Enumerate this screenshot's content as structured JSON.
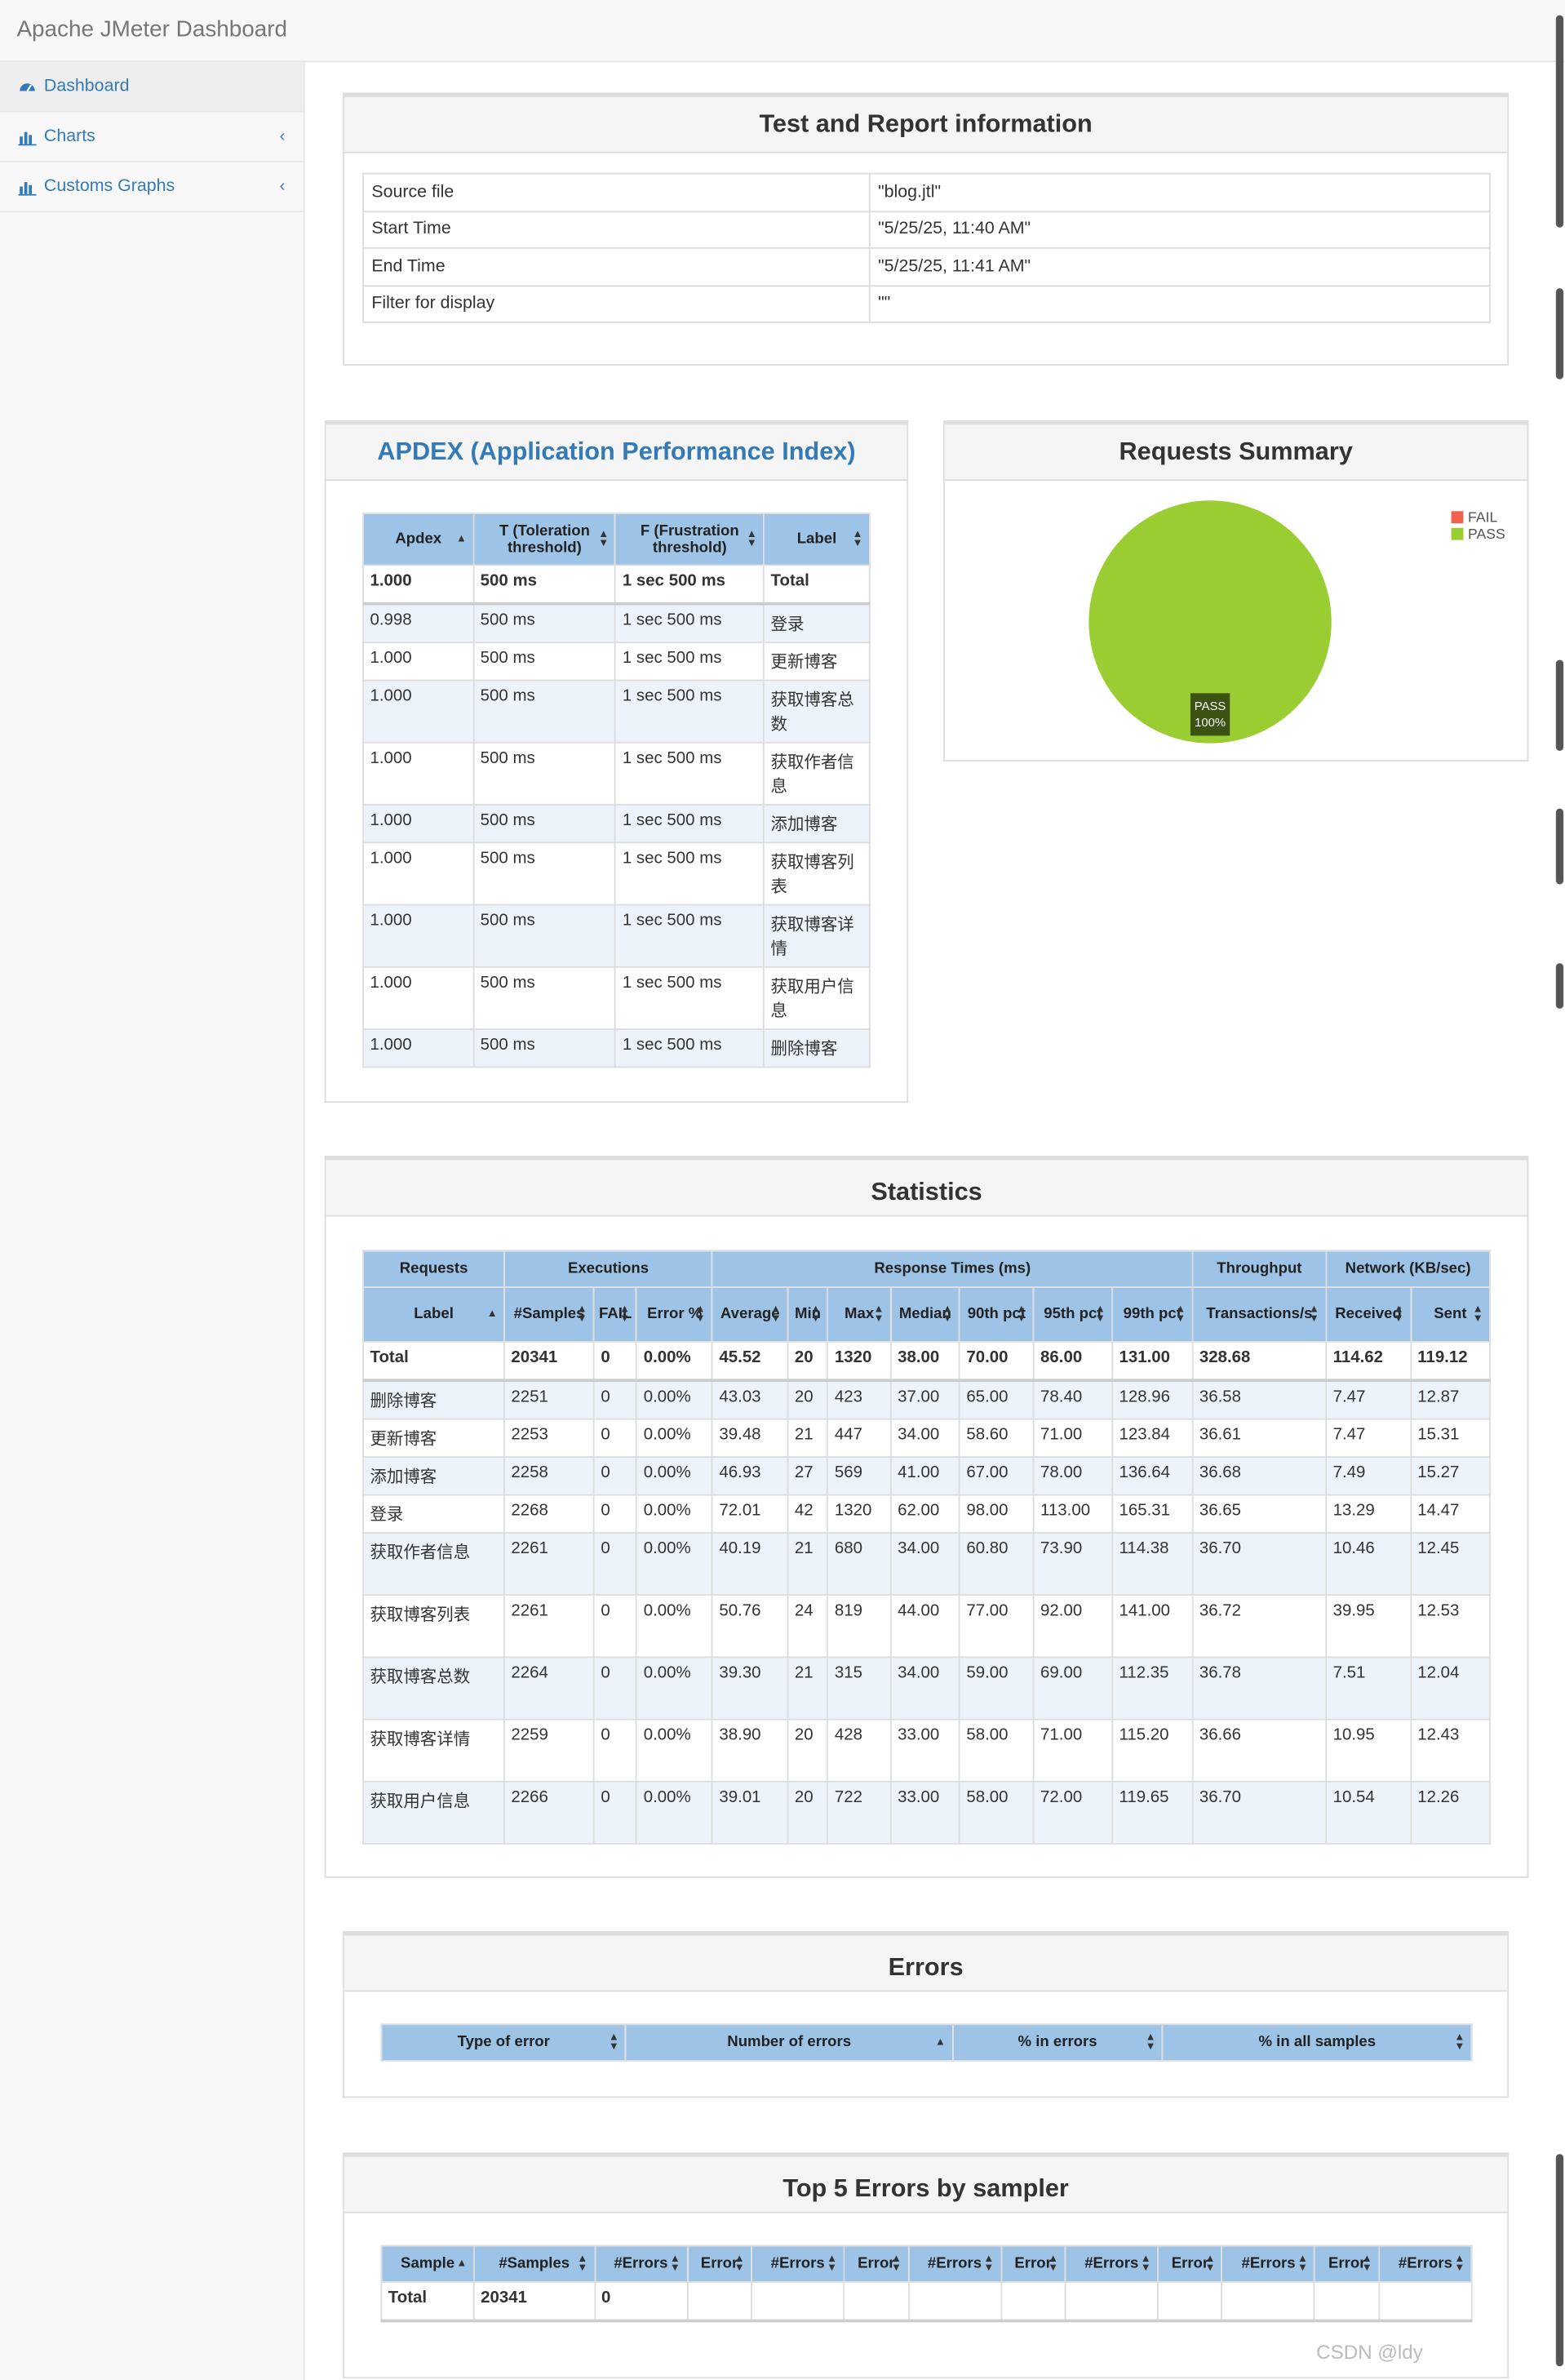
{
  "app": {
    "title": "Apache JMeter Dashboard"
  },
  "sidebar": {
    "items": [
      {
        "label": "Dashboard"
      },
      {
        "label": "Charts"
      },
      {
        "label": "Customs Graphs"
      }
    ]
  },
  "report_info": {
    "title": "Test and Report information",
    "rows": [
      {
        "key": "Source file",
        "value": "\"blog.jtl\""
      },
      {
        "key": "Start Time",
        "value": "\"5/25/25, 11:40 AM\""
      },
      {
        "key": "End Time",
        "value": "\"5/25/25, 11:41 AM\""
      },
      {
        "key": "Filter for display",
        "value": "\"\""
      }
    ]
  },
  "apdex": {
    "title": "APDEX (Application Performance Index)",
    "headers": [
      "Apdex",
      "T (Toleration threshold)",
      "F (Frustration threshold)",
      "Label"
    ],
    "total": [
      "1.000",
      "500 ms",
      "1 sec 500 ms",
      "Total"
    ],
    "rows": [
      [
        "0.998",
        "500 ms",
        "1 sec 500 ms",
        "登录"
      ],
      [
        "1.000",
        "500 ms",
        "1 sec 500 ms",
        "更新博客"
      ],
      [
        "1.000",
        "500 ms",
        "1 sec 500 ms",
        "获取博客总数"
      ],
      [
        "1.000",
        "500 ms",
        "1 sec 500 ms",
        "获取作者信息"
      ],
      [
        "1.000",
        "500 ms",
        "1 sec 500 ms",
        "添加博客"
      ],
      [
        "1.000",
        "500 ms",
        "1 sec 500 ms",
        "获取博客列表"
      ],
      [
        "1.000",
        "500 ms",
        "1 sec 500 ms",
        "获取博客详情"
      ],
      [
        "1.000",
        "500 ms",
        "1 sec 500 ms",
        "获取用户信息"
      ],
      [
        "1.000",
        "500 ms",
        "1 sec 500 ms",
        "删除博客"
      ]
    ]
  },
  "requests_summary": {
    "title": "Requests Summary",
    "legend": [
      {
        "label": "FAIL",
        "color": "#f0624d"
      },
      {
        "label": "PASS",
        "color": "#9acd32"
      }
    ],
    "slice_label": "PASS",
    "slice_pct": "100%"
  },
  "chart_data": {
    "type": "pie",
    "categories": [
      "FAIL",
      "PASS"
    ],
    "values": [
      0,
      100
    ],
    "title": "Requests Summary"
  },
  "statistics": {
    "title": "Statistics",
    "groups": [
      "Requests",
      "Executions",
      "Response Times (ms)",
      "Throughput",
      "Network (KB/sec)"
    ],
    "headers": [
      "Label",
      "#Samples",
      "FAIL",
      "Error %",
      "Average",
      "Min",
      "Max",
      "Median",
      "90th pct",
      "95th pct",
      "99th pct",
      "Transactions/s",
      "Received",
      "Sent"
    ],
    "total": [
      "Total",
      "20341",
      "0",
      "0.00%",
      "45.52",
      "20",
      "1320",
      "38.00",
      "70.00",
      "86.00",
      "131.00",
      "328.68",
      "114.62",
      "119.12"
    ],
    "rows": [
      [
        "删除博客",
        "2251",
        "0",
        "0.00%",
        "43.03",
        "20",
        "423",
        "37.00",
        "65.00",
        "78.40",
        "128.96",
        "36.58",
        "7.47",
        "12.87"
      ],
      [
        "更新博客",
        "2253",
        "0",
        "0.00%",
        "39.48",
        "21",
        "447",
        "34.00",
        "58.60",
        "71.00",
        "123.84",
        "36.61",
        "7.47",
        "15.31"
      ],
      [
        "添加博客",
        "2258",
        "0",
        "0.00%",
        "46.93",
        "27",
        "569",
        "41.00",
        "67.00",
        "78.00",
        "136.64",
        "36.68",
        "7.49",
        "15.27"
      ],
      [
        "登录",
        "2268",
        "0",
        "0.00%",
        "72.01",
        "42",
        "1320",
        "62.00",
        "98.00",
        "113.00",
        "165.31",
        "36.65",
        "13.29",
        "14.47"
      ],
      [
        "获取作者信息",
        "2261",
        "0",
        "0.00%",
        "40.19",
        "21",
        "680",
        "34.00",
        "60.80",
        "73.90",
        "114.38",
        "36.70",
        "10.46",
        "12.45"
      ],
      [
        "获取博客列表",
        "2261",
        "0",
        "0.00%",
        "50.76",
        "24",
        "819",
        "44.00",
        "77.00",
        "92.00",
        "141.00",
        "36.72",
        "39.95",
        "12.53"
      ],
      [
        "获取博客总数",
        "2264",
        "0",
        "0.00%",
        "39.30",
        "21",
        "315",
        "34.00",
        "59.00",
        "69.00",
        "112.35",
        "36.78",
        "7.51",
        "12.04"
      ],
      [
        "获取博客详情",
        "2259",
        "0",
        "0.00%",
        "38.90",
        "20",
        "428",
        "33.00",
        "58.00",
        "71.00",
        "115.20",
        "36.66",
        "10.95",
        "12.43"
      ],
      [
        "获取用户信息",
        "2266",
        "0",
        "0.00%",
        "39.01",
        "20",
        "722",
        "33.00",
        "58.00",
        "72.00",
        "119.65",
        "36.70",
        "10.54",
        "12.26"
      ]
    ]
  },
  "errors": {
    "title": "Errors",
    "headers": [
      "Type of error",
      "Number of errors",
      "% in errors",
      "% in all samples"
    ]
  },
  "top5": {
    "title": "Top 5 Errors by sampler",
    "headers": [
      "Sample",
      "#Samples",
      "#Errors",
      "Error",
      "#Errors",
      "Error",
      "#Errors",
      "Error",
      "#Errors",
      "Error",
      "#Errors",
      "Error",
      "#Errors"
    ],
    "total": [
      "Total",
      "20341",
      "0",
      "",
      "",
      "",
      "",
      "",
      "",
      "",
      "",
      "",
      ""
    ]
  },
  "watermark": {
    "text": "CSDN @ldy"
  }
}
